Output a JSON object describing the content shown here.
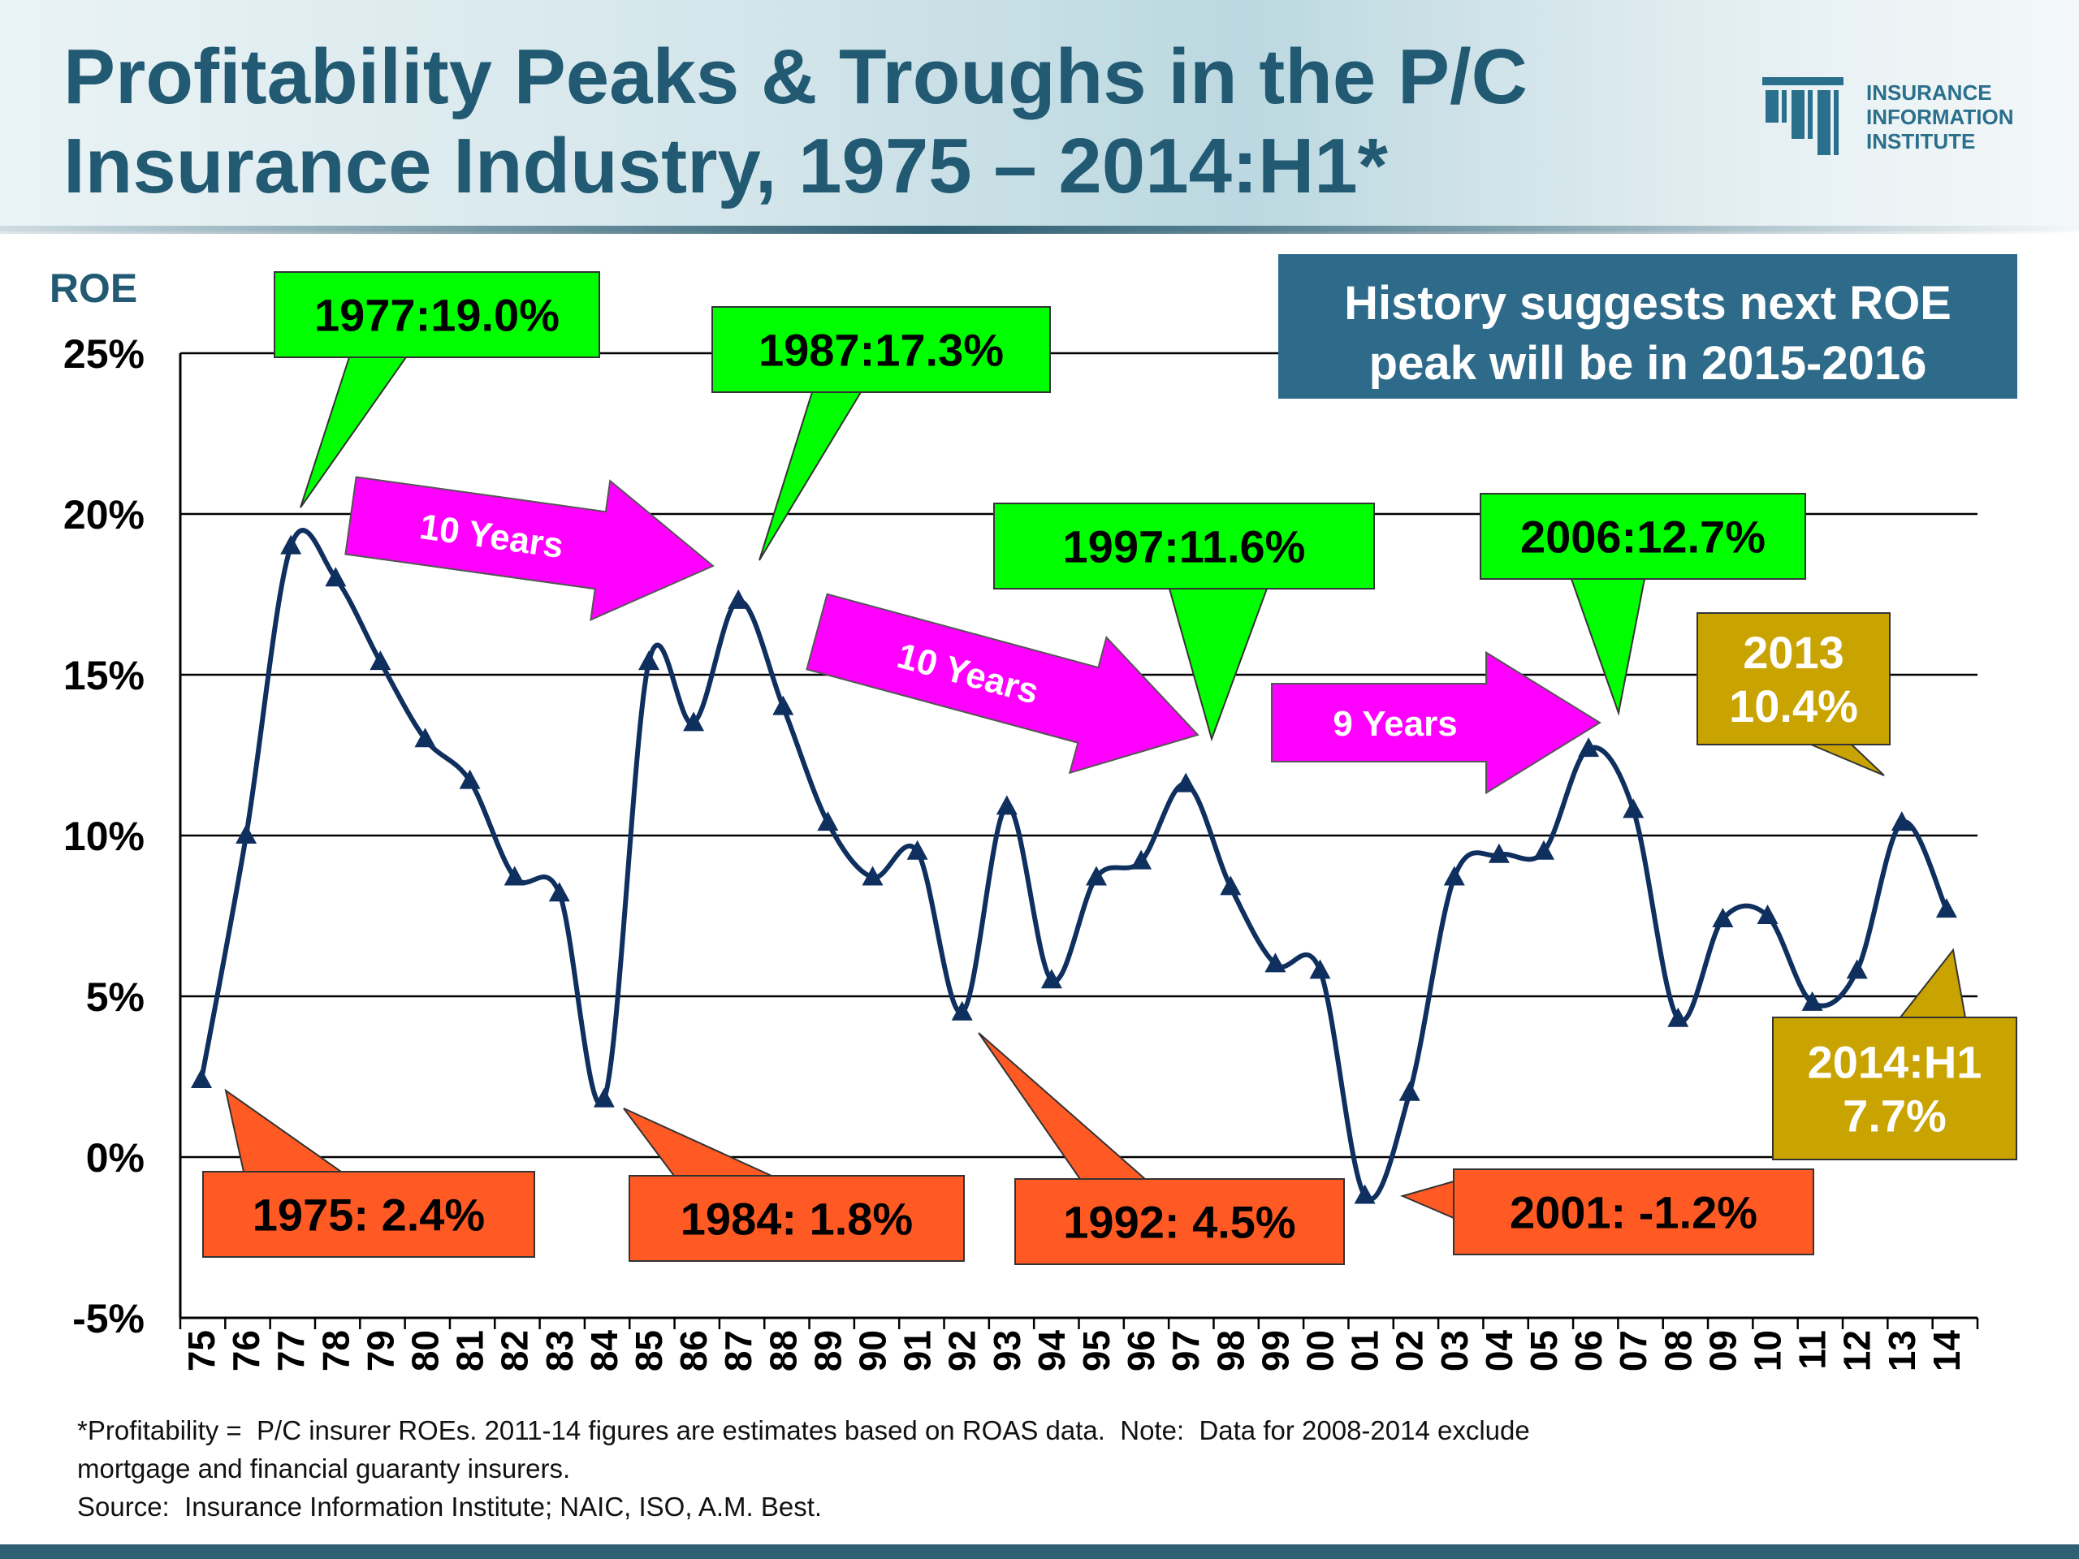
{
  "header": {
    "title": "Profitability Peaks & Troughs in the P/C\nInsurance Industry, 1975 – 2014:H1*",
    "logo_text": "INSURANCE\nINFORMATION\nINSTITUTE",
    "logo_icon": "iii-logo-icon"
  },
  "colors": {
    "title": "#215a72",
    "line": "#0f2f5e",
    "peak_callout": "#00ff00",
    "trough_callout": "#ff5a24",
    "interval_arrow": "#ff00ff",
    "recent_callout": "#c9a300",
    "info_box": "#2e6b8a"
  },
  "chart_data": {
    "type": "line",
    "ylabel": "ROE",
    "ylim": [
      -5,
      25
    ],
    "yticks": [
      "-5%",
      "0%",
      "5%",
      "10%",
      "15%",
      "20%",
      "25%"
    ],
    "ytick_values": [
      -5,
      0,
      5,
      10,
      15,
      20,
      25
    ],
    "grid": true,
    "categories": [
      "75",
      "76",
      "77",
      "78",
      "79",
      "80",
      "81",
      "82",
      "83",
      "84",
      "85",
      "86",
      "87",
      "88",
      "89",
      "90",
      "91",
      "92",
      "93",
      "94",
      "95",
      "96",
      "97",
      "98",
      "99",
      "00",
      "01",
      "02",
      "03",
      "04",
      "05",
      "06",
      "07",
      "08",
      "09",
      "10",
      "11",
      "12",
      "13",
      "14"
    ],
    "values": [
      2.4,
      10.0,
      19.0,
      18.0,
      15.4,
      13.0,
      11.7,
      8.7,
      8.2,
      1.8,
      15.4,
      13.5,
      17.3,
      14.0,
      10.4,
      8.7,
      9.5,
      4.5,
      10.9,
      5.5,
      8.7,
      9.2,
      11.6,
      8.4,
      6.0,
      5.8,
      -1.2,
      2.0,
      8.7,
      9.4,
      9.5,
      12.7,
      10.8,
      4.3,
      7.4,
      7.5,
      4.8,
      5.8,
      10.4,
      7.7
    ],
    "peaks": [
      {
        "label": "1977:19.0%",
        "index": 2
      },
      {
        "label": "1987:17.3%",
        "index": 12
      },
      {
        "label": "1997:11.6%",
        "index": 22
      },
      {
        "label": "2006:12.7%",
        "index": 31
      }
    ],
    "troughs": [
      {
        "label": "1975: 2.4%",
        "index": 0
      },
      {
        "label": "1984: 1.8%",
        "index": 9
      },
      {
        "label": "1992: 4.5%",
        "index": 17
      },
      {
        "label": "2001: -1.2%",
        "index": 26
      }
    ],
    "intervals": [
      {
        "label": "10 Years",
        "from": 2,
        "to": 12
      },
      {
        "label": "10 Years",
        "from": 12,
        "to": 22
      },
      {
        "label": "9 Years",
        "from": 22,
        "to": 31
      }
    ],
    "recent": [
      {
        "label": "2013\n10.4%",
        "index": 38
      },
      {
        "label": "2014:H1\n7.7%",
        "index": 39
      }
    ],
    "info_box": "History suggests next ROE\npeak will be in 2015-2016"
  },
  "footnote": {
    "line1": "*Profitability =  P/C insurer ROEs. 2011-14 figures are estimates based on ROAS data.  Note:  Data for 2008-2014 exclude",
    "line2": "mortgage and financial guaranty insurers.",
    "line3": "Source:  Insurance Information Institute; NAIC, ISO, A.M. Best."
  }
}
